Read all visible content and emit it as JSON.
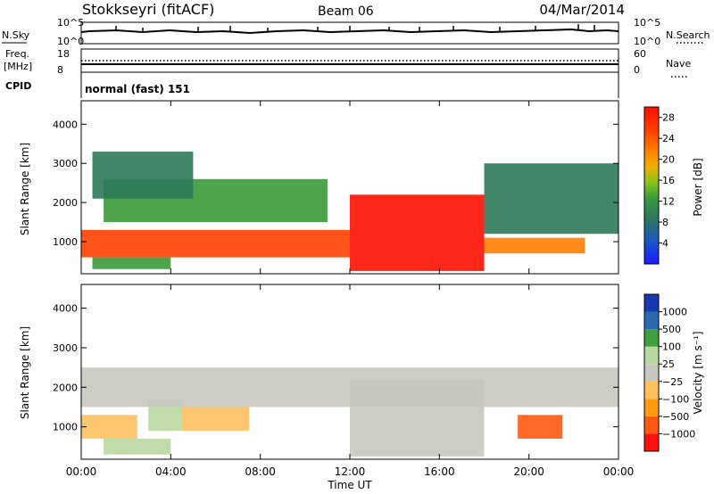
{
  "header": {
    "station": "Stokkseyri (fitACF)",
    "beam": "Beam 06",
    "date": "04/Mar/2014"
  },
  "noise_panel": {
    "left_label": "N.Sky",
    "left_ticks": [
      "10^5",
      "10^0"
    ],
    "right_label": "N.Search",
    "right_ticks": [
      "10^5",
      "10^0"
    ]
  },
  "freq_panel": {
    "left_label_1": "Freq.",
    "left_label_2": "[MHz]",
    "left_ticks": [
      "18",
      "8"
    ],
    "right_label": "Nave",
    "right_ticks": [
      "60",
      "0"
    ]
  },
  "cpid_panel": {
    "label": "CPID",
    "value": "normal (fast) 151"
  },
  "colors": {
    "power_scale": [
      "#1a1aff",
      "#1a55c8",
      "#2e7a5a",
      "#3a9a3a",
      "#8ac21e",
      "#f0b000",
      "#ff8000",
      "#ff4000",
      "#ff1000"
    ],
    "velocity_scale": [
      "#ff1010",
      "#ff5a10",
      "#ff9a10",
      "#ffc060",
      "#c8c8c0",
      "#b8d8a0",
      "#40a040",
      "#2a6ab0",
      "#1838b0"
    ],
    "ground_scatter": "#c8c8c0"
  },
  "chart_data": [
    {
      "type": "heatmap",
      "title": "",
      "quantity": "Power",
      "xlabel": "Time UT",
      "ylabel": "Slant Range [km]",
      "xlim": [
        0,
        24
      ],
      "ylim": [
        180,
        4600
      ],
      "xticks": [
        "00:00",
        "04:00",
        "08:00",
        "12:00",
        "16:00",
        "20:00",
        "00:00"
      ],
      "yticks": [
        "1000",
        "2000",
        "3000",
        "4000"
      ],
      "colorbar_label": "Power [dB]",
      "colorbar_ticks": [
        "4",
        "8",
        "12",
        "16",
        "20",
        "24",
        "28"
      ],
      "colorbar_range": [
        0,
        30
      ],
      "regions": [
        {
          "t0": 0.0,
          "t1": 12.0,
          "r0": 600,
          "r1": 1300,
          "value": 24
        },
        {
          "t0": 12.0,
          "t1": 18.0,
          "r0": 250,
          "r1": 2200,
          "value": 28
        },
        {
          "t0": 18.0,
          "t1": 22.5,
          "r0": 700,
          "r1": 1100,
          "value": 22
        },
        {
          "t0": 1.0,
          "t1": 11.0,
          "r0": 1500,
          "r1": 2600,
          "value": 10
        },
        {
          "t0": 0.5,
          "t1": 5.0,
          "r0": 2100,
          "r1": 3300,
          "value": 8
        },
        {
          "t0": 18.0,
          "t1": 24.0,
          "r0": 1200,
          "r1": 3000,
          "value": 9
        },
        {
          "t0": 0.5,
          "t1": 4.0,
          "r0": 300,
          "r1": 600,
          "value": 12
        }
      ]
    },
    {
      "type": "heatmap",
      "title": "",
      "quantity": "Velocity",
      "xlabel": "Time UT",
      "ylabel": "Slant Range [km]",
      "xlim": [
        0,
        24
      ],
      "ylim": [
        180,
        4600
      ],
      "xticks": [
        "00:00",
        "04:00",
        "08:00",
        "12:00",
        "16:00",
        "20:00",
        "00:00"
      ],
      "yticks": [
        "1000",
        "2000",
        "3000",
        "4000"
      ],
      "colorbar_label": "Velocity [m s⁻¹]",
      "colorbar_ticks": [
        "1000",
        "500",
        "100",
        "25",
        "−25",
        "−100",
        "−500",
        "−1000"
      ],
      "regions": [
        {
          "t0": 0.0,
          "t1": 2.5,
          "r0": 700,
          "r1": 1300,
          "value": -200
        },
        {
          "t0": 3.0,
          "t1": 4.5,
          "r0": 900,
          "r1": 1700,
          "value": 300
        },
        {
          "t0": 4.5,
          "t1": 7.5,
          "r0": 900,
          "r1": 1500,
          "value": -150
        },
        {
          "t0": 0.0,
          "t1": 24.0,
          "r0": 1500,
          "r1": 2500,
          "value": 0
        },
        {
          "t0": 12.0,
          "t1": 18.0,
          "r0": 250,
          "r1": 2200,
          "value": 0
        },
        {
          "t0": 19.5,
          "t1": 21.5,
          "r0": 700,
          "r1": 1300,
          "value": -700
        },
        {
          "t0": 1.0,
          "t1": 4.0,
          "r0": 300,
          "r1": 700,
          "value": 150
        }
      ]
    }
  ]
}
